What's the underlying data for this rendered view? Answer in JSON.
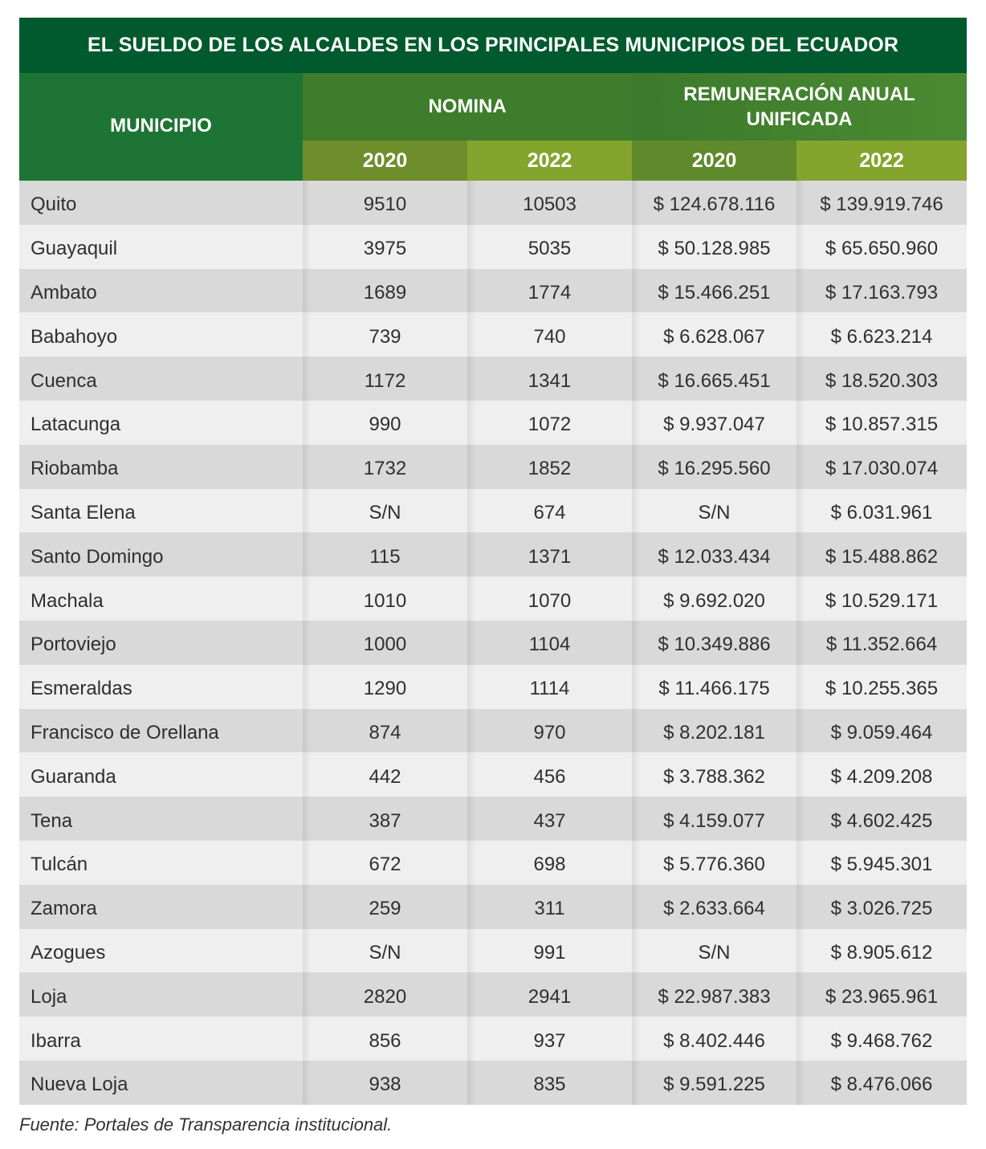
{
  "chart_data": {
    "type": "table",
    "title": "EL SUELDO DE LOS ALCALDES EN LOS PRINCIPALES MUNICIPIOS DEL ECUADOR",
    "headers": {
      "municipio": "MUNICIPIO",
      "nomina": "NOMINA",
      "remuneracion": "REMUNERACIÓN ANUAL UNIFICADA",
      "years": [
        "2020",
        "2022",
        "2020",
        "2022"
      ]
    },
    "rows": [
      {
        "municipio": "Quito",
        "nomina_2020": "9510",
        "nomina_2022": "10503",
        "rem_2020": "$ 124.678.116",
        "rem_2022": "$ 139.919.746"
      },
      {
        "municipio": "Guayaquil",
        "nomina_2020": "3975",
        "nomina_2022": "5035",
        "rem_2020": "$ 50.128.985",
        "rem_2022": "$ 65.650.960"
      },
      {
        "municipio": "Ambato",
        "nomina_2020": "1689",
        "nomina_2022": "1774",
        "rem_2020": "$ 15.466.251",
        "rem_2022": "$ 17.163.793"
      },
      {
        "municipio": "Babahoyo",
        "nomina_2020": "739",
        "nomina_2022": "740",
        "rem_2020": "$ 6.628.067",
        "rem_2022": "$ 6.623.214"
      },
      {
        "municipio": "Cuenca",
        "nomina_2020": "1172",
        "nomina_2022": "1341",
        "rem_2020": "$ 16.665.451",
        "rem_2022": "$ 18.520.303"
      },
      {
        "municipio": "Latacunga",
        "nomina_2020": "990",
        "nomina_2022": "1072",
        "rem_2020": "$ 9.937.047",
        "rem_2022": "$ 10.857.315"
      },
      {
        "municipio": "Riobamba",
        "nomina_2020": "1732",
        "nomina_2022": "1852",
        "rem_2020": "$ 16.295.560",
        "rem_2022": "$ 17.030.074"
      },
      {
        "municipio": "Santa Elena",
        "nomina_2020": "S/N",
        "nomina_2022": "674",
        "rem_2020": "S/N",
        "rem_2022": "$ 6.031.961"
      },
      {
        "municipio": "Santo Domingo",
        "nomina_2020": "115",
        "nomina_2022": "1371",
        "rem_2020": "$ 12.033.434",
        "rem_2022": "$ 15.488.862"
      },
      {
        "municipio": "Machala",
        "nomina_2020": "1010",
        "nomina_2022": "1070",
        "rem_2020": "$ 9.692.020",
        "rem_2022": "$ 10.529.171"
      },
      {
        "municipio": "Portoviejo",
        "nomina_2020": "1000",
        "nomina_2022": "1104",
        "rem_2020": "$ 10.349.886",
        "rem_2022": "$ 11.352.664"
      },
      {
        "municipio": "Esmeraldas",
        "nomina_2020": "1290",
        "nomina_2022": "1114",
        "rem_2020": "$ 11.466.175",
        "rem_2022": "$ 10.255.365"
      },
      {
        "municipio": "Francisco de Orellana",
        "nomina_2020": "874",
        "nomina_2022": "970",
        "rem_2020": "$ 8.202.181",
        "rem_2022": "$ 9.059.464"
      },
      {
        "municipio": "Guaranda",
        "nomina_2020": "442",
        "nomina_2022": "456",
        "rem_2020": "$ 3.788.362",
        "rem_2022": "$ 4.209.208"
      },
      {
        "municipio": "Tena",
        "nomina_2020": "387",
        "nomina_2022": "437",
        "rem_2020": "$ 4.159.077",
        "rem_2022": "$ 4.602.425"
      },
      {
        "municipio": "Tulcán",
        "nomina_2020": "672",
        "nomina_2022": "698",
        "rem_2020": "$ 5.776.360",
        "rem_2022": "$ 5.945.301"
      },
      {
        "municipio": "Zamora",
        "nomina_2020": "259",
        "nomina_2022": "311",
        "rem_2020": "$ 2.633.664",
        "rem_2022": "$ 3.026.725"
      },
      {
        "municipio": "Azogues",
        "nomina_2020": "S/N",
        "nomina_2022": "991",
        "rem_2020": "S/N",
        "rem_2022": "$ 8.905.612"
      },
      {
        "municipio": "Loja",
        "nomina_2020": "2820",
        "nomina_2022": "2941",
        "rem_2020": "$ 22.987.383",
        "rem_2022": "$ 23.965.961"
      },
      {
        "municipio": "Ibarra",
        "nomina_2020": "856",
        "nomina_2022": "937",
        "rem_2020": "$ 8.402.446",
        "rem_2022": "$ 9.468.762"
      },
      {
        "municipio": "Nueva Loja",
        "nomina_2020": "938",
        "nomina_2022": "835",
        "rem_2020": "$ 9.591.225",
        "rem_2022": "$ 8.476.066"
      }
    ],
    "source": "Fuente: Portales de Transparencia institucional.",
    "colors": {
      "title_bg": "#015a2e",
      "header_dark": "#1e7434",
      "header_mid": "#3d7d2c",
      "header_light": "#84a52d",
      "row_odd": "#d9d9d9",
      "row_even": "#efefef"
    }
  }
}
